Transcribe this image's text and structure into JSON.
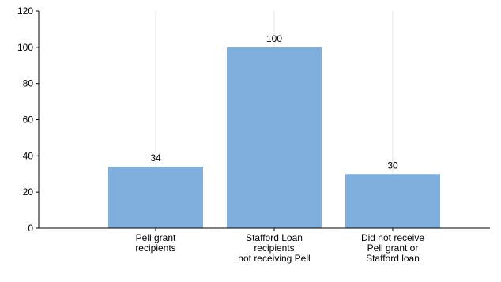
{
  "chart_data": {
    "type": "bar",
    "categories": [
      [
        "Pell grant",
        "recipients"
      ],
      [
        "Stafford Loan",
        "recipients",
        "not receiving Pell"
      ],
      [
        "Did not receive",
        "Pell grant or",
        "Stafford loan"
      ]
    ],
    "values": [
      34,
      100,
      30
    ],
    "data_labels": [
      "34",
      "100",
      "30"
    ],
    "y_ticks": [
      "0",
      "20",
      "40",
      "60",
      "80",
      "100",
      "120"
    ],
    "ylim": [
      0,
      120
    ],
    "grid": "vertical",
    "title": "",
    "xlabel": "",
    "ylabel": "",
    "colors": {
      "bar": "#7fafdc",
      "axis": "#000000",
      "grid": "#e6e6e6"
    }
  }
}
